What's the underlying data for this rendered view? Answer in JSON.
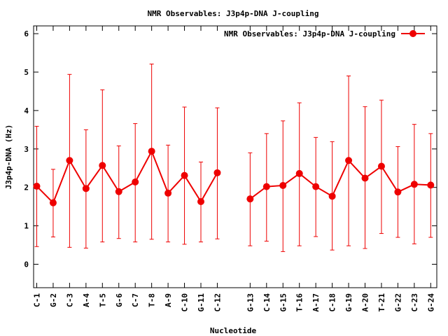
{
  "chart_data": {
    "type": "line",
    "title": "NMR Observables: J3p4p-DNA J-coupling",
    "xlabel": "Nucleotide",
    "ylabel": "J3p4p-DNA (Hz)",
    "ylim": [
      -0.6,
      6.2
    ],
    "yticks": [
      0,
      1,
      2,
      3,
      4,
      5,
      6
    ],
    "grid": false,
    "legend_position": "top-right",
    "color": "#ee0000",
    "series": [
      {
        "name": "NMR Observables: J3p4p-DNA J-coupling",
        "segments": [
          {
            "x": [
              "C-1",
              "G-2",
              "C-3",
              "A-4",
              "T-5",
              "G-6",
              "C-7",
              "T-8",
              "A-9",
              "C-10",
              "G-11",
              "C-12"
            ],
            "y": [
              2.03,
              1.6,
              2.7,
              1.97,
              2.57,
              1.89,
              2.14,
              2.94,
              1.85,
              2.31,
              1.63,
              2.38
            ],
            "err_low": [
              0.46,
              0.71,
              0.44,
              0.42,
              0.58,
              0.67,
              0.58,
              0.65,
              0.58,
              0.52,
              0.58,
              0.66
            ],
            "err_high": [
              3.59,
              2.47,
              4.94,
              3.5,
              4.54,
              3.08,
              3.66,
              5.21,
              3.1,
              4.09,
              2.66,
              4.07
            ]
          },
          {
            "x": [
              "G-13",
              "C-14",
              "G-15",
              "T-16",
              "A-17",
              "C-18",
              "G-19",
              "A-20",
              "T-21",
              "G-22",
              "C-23",
              "G-24"
            ],
            "y": [
              1.7,
              2.02,
              2.05,
              2.36,
              2.02,
              1.77,
              2.7,
              2.24,
              2.55,
              1.88,
              2.08,
              2.06
            ],
            "err_low": [
              0.48,
              0.6,
              0.33,
              0.48,
              0.72,
              0.37,
              0.48,
              0.41,
              0.8,
              0.7,
              0.53,
              0.7
            ],
            "err_high": [
              2.9,
              3.4,
              3.73,
              4.2,
              3.3,
              3.19,
              4.9,
              4.1,
              4.27,
              3.06,
              3.64,
              3.4
            ]
          }
        ]
      }
    ]
  }
}
